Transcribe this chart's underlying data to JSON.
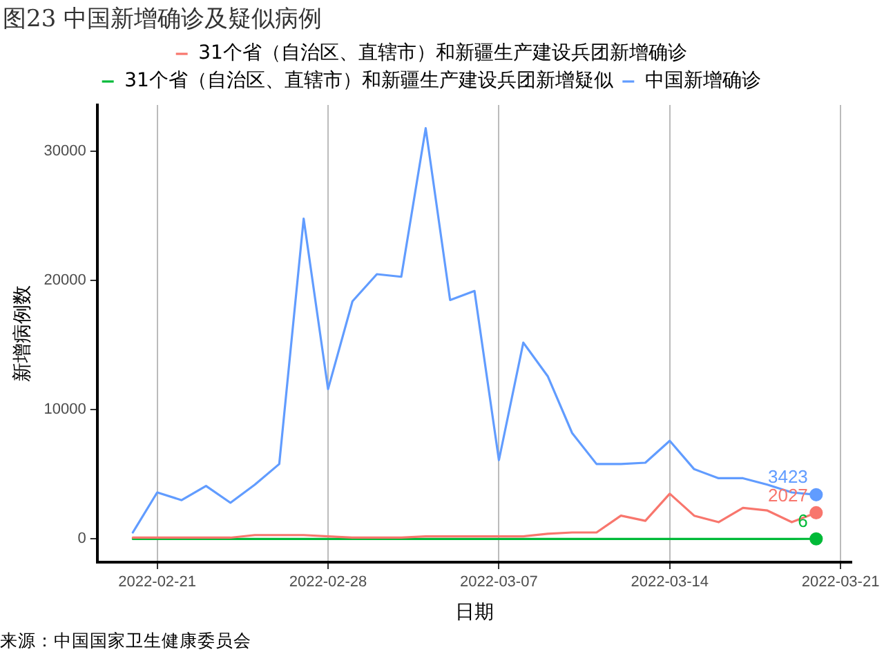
{
  "chart_data": {
    "type": "line",
    "title": "图23 中国新增确诊及疑似病例",
    "xlabel": "日期",
    "ylabel": "新增病例数",
    "annotations": [
      "来源：中国国家卫生健康委员会"
    ],
    "x": [
      "2022-02-20",
      "2022-02-21",
      "2022-02-22",
      "2022-02-23",
      "2022-02-24",
      "2022-02-25",
      "2022-02-26",
      "2022-02-27",
      "2022-02-28",
      "2022-03-01",
      "2022-03-02",
      "2022-03-03",
      "2022-03-04",
      "2022-03-05",
      "2022-03-06",
      "2022-03-07",
      "2022-03-08",
      "2022-03-09",
      "2022-03-10",
      "2022-03-11",
      "2022-03-12",
      "2022-03-13",
      "2022-03-14",
      "2022-03-15",
      "2022-03-16",
      "2022-03-17",
      "2022-03-18",
      "2022-03-19",
      "2022-03-20"
    ],
    "series": [
      {
        "name": "31个省（自治区、直辖市）和新疆生产建设兵团新增确诊",
        "color": "#f8766d",
        "values": [
          100,
          100,
          100,
          100,
          100,
          300,
          300,
          300,
          200,
          100,
          100,
          100,
          200,
          200,
          200,
          200,
          200,
          400,
          500,
          500,
          1800,
          1400,
          3500,
          1800,
          1300,
          2400,
          2200,
          1300,
          2027
        ],
        "value_labels": [
          null,
          null,
          null,
          null,
          null,
          null,
          null,
          null,
          null,
          null,
          null,
          null,
          null,
          null,
          null,
          null,
          null,
          null,
          null,
          null,
          null,
          null,
          null,
          null,
          null,
          null,
          null,
          null,
          "2027"
        ]
      },
      {
        "name": "31个省（自治区、直辖市）和新疆生产建设兵团新增疑似",
        "color": "#00ba38",
        "values": [
          0,
          0,
          0,
          0,
          0,
          0,
          0,
          0,
          0,
          0,
          0,
          0,
          0,
          0,
          0,
          0,
          0,
          0,
          0,
          0,
          0,
          0,
          0,
          0,
          0,
          0,
          0,
          0,
          6
        ],
        "value_labels": [
          null,
          null,
          null,
          null,
          null,
          null,
          null,
          null,
          null,
          null,
          null,
          null,
          null,
          null,
          null,
          null,
          null,
          null,
          null,
          null,
          null,
          null,
          null,
          null,
          null,
          null,
          null,
          null,
          "6"
        ]
      },
      {
        "name": "中国新增确诊",
        "color": "#619cff",
        "values": [
          500,
          3600,
          3000,
          4100,
          2800,
          4200,
          5800,
          24800,
          11600,
          18400,
          20500,
          20300,
          31800,
          18500,
          19200,
          6100,
          15200,
          12600,
          8200,
          5800,
          5800,
          5900,
          7600,
          5400,
          4700,
          4700,
          4200,
          3600,
          3423
        ],
        "value_labels": [
          null,
          null,
          null,
          null,
          null,
          null,
          null,
          null,
          null,
          null,
          null,
          null,
          null,
          null,
          null,
          null,
          null,
          null,
          null,
          null,
          null,
          null,
          null,
          null,
          null,
          null,
          null,
          null,
          "3423"
        ]
      }
    ],
    "xlim": [
      "2022-02-18T13:00",
      "2022-03-21T11:00"
    ],
    "xticks": [
      "2022-02-21",
      "2022-02-28",
      "2022-03-07",
      "2022-03-14",
      "2022-03-21"
    ],
    "ylim": [
      -1800,
      33600
    ],
    "yticks": [
      0,
      10000,
      20000,
      30000
    ],
    "grid": "x",
    "legend": "top",
    "line_style": "solid"
  }
}
